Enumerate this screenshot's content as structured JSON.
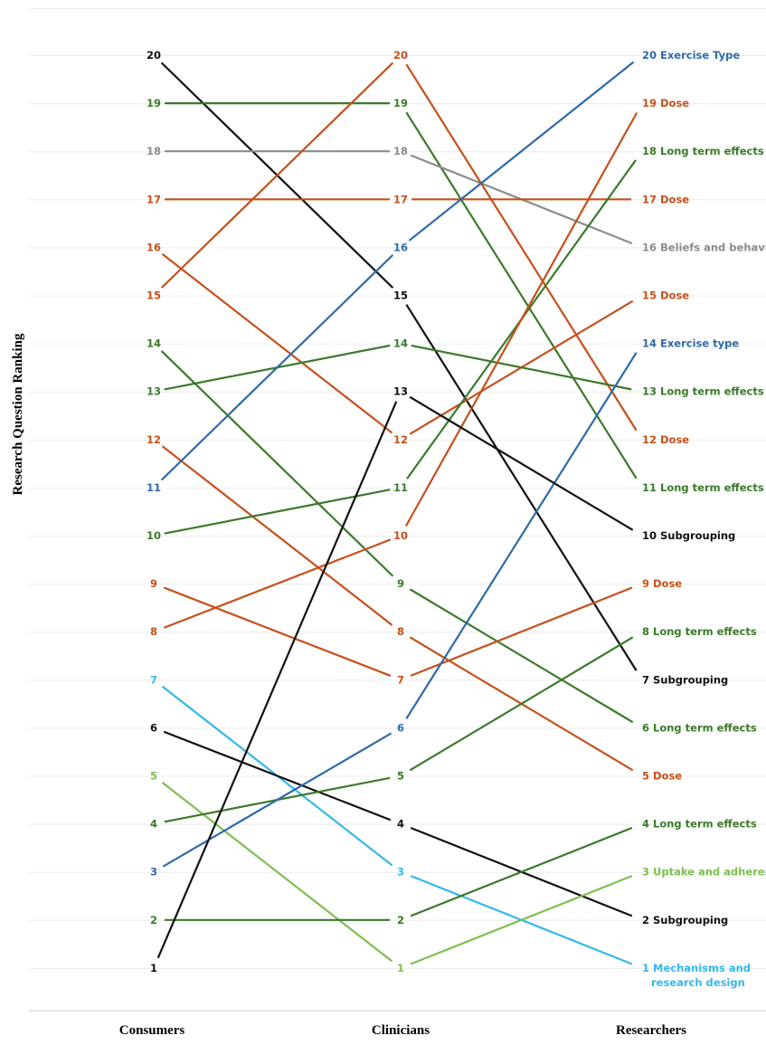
{
  "chart_data": {
    "type": "line",
    "ylabel": "Research Question Ranking",
    "categories": [
      "Consumers",
      "Clinicians",
      "Researchers"
    ],
    "ylim": [
      1,
      20
    ],
    "grid": true,
    "colors": {
      "dose": "#c5501b",
      "exercise_type": "#2e6aa8",
      "long_term_effects": "#3b7a2a",
      "subgrouping": "#111111",
      "beliefs_and_behaviour": "#8c8c8c",
      "uptake_and_adherence": "#7cc04f",
      "mechanisms_and_research_design": "#33b8ea"
    },
    "researcher_labels": [
      {
        "rank": 20,
        "text": "Exercise Type",
        "group": "exercise_type"
      },
      {
        "rank": 19,
        "text": "Dose",
        "group": "dose"
      },
      {
        "rank": 18,
        "text": "Long term effects",
        "group": "long_term_effects"
      },
      {
        "rank": 17,
        "text": "Dose",
        "group": "dose"
      },
      {
        "rank": 16,
        "text": "Beliefs and behaviour",
        "group": "beliefs_and_behaviour"
      },
      {
        "rank": 15,
        "text": "Dose",
        "group": "dose"
      },
      {
        "rank": 14,
        "text": "Exercise type",
        "group": "exercise_type"
      },
      {
        "rank": 13,
        "text": "Long term effects",
        "group": "long_term_effects"
      },
      {
        "rank": 12,
        "text": "Dose",
        "group": "dose"
      },
      {
        "rank": 11,
        "text": "Long term effects",
        "group": "long_term_effects"
      },
      {
        "rank": 10,
        "text": "Subgrouping",
        "group": "subgrouping"
      },
      {
        "rank": 9,
        "text": "Dose",
        "group": "dose"
      },
      {
        "rank": 8,
        "text": "Long term effects",
        "group": "long_term_effects"
      },
      {
        "rank": 7,
        "text": "Subgrouping",
        "group": "subgrouping"
      },
      {
        "rank": 6,
        "text": "Long term effects",
        "group": "long_term_effects"
      },
      {
        "rank": 5,
        "text": "Dose",
        "group": "dose"
      },
      {
        "rank": 4,
        "text": "Long term effects",
        "group": "long_term_effects"
      },
      {
        "rank": 3,
        "text": "Uptake and adherence",
        "group": "uptake_and_adherence"
      },
      {
        "rank": 2,
        "text": "Subgrouping",
        "group": "subgrouping"
      },
      {
        "rank": 1,
        "text": "Mechanisms and research design",
        "group": "mechanisms_and_research_design"
      }
    ],
    "series": [
      {
        "values": [
          20,
          15,
          7
        ],
        "group": "subgrouping"
      },
      {
        "values": [
          19,
          19,
          11
        ],
        "group": "long_term_effects"
      },
      {
        "values": [
          18,
          18,
          16
        ],
        "group": "beliefs_and_behaviour"
      },
      {
        "values": [
          17,
          17,
          17
        ],
        "group": "dose"
      },
      {
        "values": [
          16,
          12,
          15
        ],
        "group": "dose"
      },
      {
        "values": [
          15,
          20,
          12
        ],
        "group": "dose"
      },
      {
        "values": [
          14,
          9,
          6
        ],
        "group": "long_term_effects"
      },
      {
        "values": [
          13,
          14,
          13
        ],
        "group": "long_term_effects"
      },
      {
        "values": [
          12,
          8,
          5
        ],
        "group": "dose"
      },
      {
        "values": [
          11,
          16,
          20
        ],
        "group": "exercise_type"
      },
      {
        "values": [
          10,
          11,
          18
        ],
        "group": "long_term_effects"
      },
      {
        "values": [
          9,
          7,
          9
        ],
        "group": "dose"
      },
      {
        "values": [
          8,
          10,
          19
        ],
        "group": "dose"
      },
      {
        "values": [
          7,
          3,
          1
        ],
        "group": "mechanisms_and_research_design"
      },
      {
        "values": [
          6,
          4,
          2
        ],
        "group": "subgrouping"
      },
      {
        "values": [
          5,
          1,
          3
        ],
        "group": "uptake_and_adherence"
      },
      {
        "values": [
          4,
          5,
          8
        ],
        "group": "long_term_effects"
      },
      {
        "values": [
          3,
          6,
          14
        ],
        "group": "exercise_type"
      },
      {
        "values": [
          2,
          2,
          4
        ],
        "group": "long_term_effects"
      },
      {
        "values": [
          1,
          13,
          10
        ],
        "group": "subgrouping"
      }
    ]
  }
}
